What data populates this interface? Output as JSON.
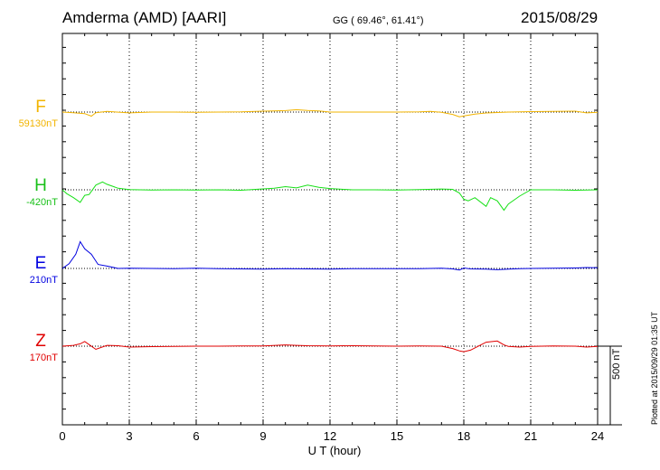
{
  "header": {
    "station": "Amderma (AMD)  [AARI]",
    "coords": "GG ( 69.46°,  61.41°)",
    "date": "2015/08/29"
  },
  "footer": {
    "plotted": "Plotted at 2015/09/29 01:35 UT"
  },
  "colors": {
    "F": "#f2b400",
    "H": "#18e018",
    "E": "#0000e0",
    "Z": "#e00000",
    "axis": "#000000"
  },
  "chart_data": {
    "type": "line",
    "xlabel": "U T (hour)",
    "xlim": [
      0,
      24
    ],
    "x_ticks": [
      "0",
      "3",
      "6",
      "9",
      "12",
      "15",
      "18",
      "21",
      "24"
    ],
    "scale_bar": {
      "value_nT": 500,
      "label": "500 nT"
    },
    "grid": "vertical dotted lines every 3 h; dotted baseline per channel",
    "series": [
      {
        "name": "F",
        "baseline_label": "59130nT",
        "x": [
          0,
          0.5,
          1,
          1.3,
          1.5,
          2,
          3,
          4,
          5,
          6,
          7,
          8,
          9,
          10,
          10.5,
          11,
          11.5,
          12,
          13,
          14,
          15,
          16,
          16.5,
          17,
          17.5,
          17.8,
          18,
          18.5,
          19,
          19.5,
          20,
          21,
          22,
          23,
          23.5,
          24
        ],
        "y": [
          0,
          -40,
          -100,
          -260,
          -40,
          40,
          -50,
          0,
          0,
          -20,
          0,
          10,
          60,
          90,
          150,
          100,
          70,
          0,
          0,
          0,
          0,
          10,
          40,
          -20,
          -150,
          -300,
          -250,
          -130,
          -60,
          -30,
          0,
          30,
          40,
          60,
          -50,
          -20
        ]
      },
      {
        "name": "H",
        "baseline_label": "-420nT",
        "x": [
          0,
          0.2,
          0.5,
          0.8,
          1,
          1.2,
          1.5,
          1.8,
          2,
          2.5,
          3,
          4,
          5,
          6,
          7,
          8,
          9,
          9.5,
          10,
          10.5,
          11,
          11.5,
          12,
          13,
          14,
          15,
          16,
          17,
          17.5,
          17.8,
          18,
          18.2,
          18.5,
          19,
          19.2,
          19.5,
          19.8,
          20,
          20.5,
          21,
          22,
          23,
          24
        ],
        "y": [
          0,
          -250,
          -500,
          -800,
          -350,
          -300,
          300,
          500,
          350,
          100,
          10,
          -20,
          0,
          -20,
          0,
          -30,
          60,
          100,
          200,
          120,
          300,
          160,
          80,
          0,
          0,
          -10,
          10,
          50,
          30,
          -200,
          -600,
          -700,
          -500,
          -1050,
          -500,
          -700,
          -1300,
          -900,
          -400,
          0,
          0,
          -30,
          0
        ]
      },
      {
        "name": "E",
        "baseline_label": "210nT",
        "x": [
          0,
          0.3,
          0.6,
          0.8,
          1,
          1.3,
          1.6,
          2,
          2.5,
          3,
          4,
          5,
          6,
          7,
          8,
          9,
          10,
          11,
          12,
          13,
          14,
          15,
          16,
          17,
          17.5,
          17.8,
          18,
          18.3,
          19,
          19.5,
          20,
          20.5,
          21,
          22,
          23,
          23.5,
          24
        ],
        "y": [
          0,
          300,
          900,
          1700,
          1250,
          900,
          250,
          150,
          0,
          10,
          0,
          -10,
          10,
          -20,
          -30,
          -40,
          -20,
          -30,
          -40,
          -10,
          -10,
          -20,
          -10,
          10,
          -30,
          -100,
          30,
          -30,
          -40,
          -80,
          -40,
          -20,
          0,
          10,
          30,
          60,
          40
        ]
      },
      {
        "name": "Z",
        "baseline_label": "170nT",
        "x": [
          0,
          0.5,
          0.8,
          1,
          1.2,
          1.5,
          2,
          2.5,
          3,
          4,
          5,
          6,
          7,
          8,
          9,
          10,
          10.5,
          11,
          12,
          13,
          14,
          15,
          16,
          17,
          17.5,
          17.8,
          18,
          18.3,
          19,
          19.5,
          19.8,
          20,
          20.5,
          21,
          22,
          23,
          23.5,
          24
        ],
        "y": [
          0,
          50,
          150,
          300,
          100,
          -200,
          50,
          30,
          -60,
          -30,
          -20,
          0,
          0,
          10,
          20,
          80,
          50,
          30,
          20,
          30,
          20,
          0,
          10,
          0,
          -150,
          -300,
          -350,
          -250,
          250,
          330,
          80,
          -20,
          -60,
          -20,
          10,
          0,
          -60,
          -20
        ]
      }
    ]
  }
}
